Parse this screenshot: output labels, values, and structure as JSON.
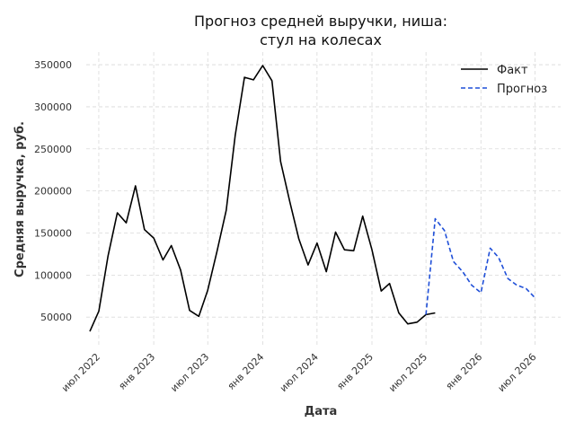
{
  "chart_data": {
    "type": "line",
    "title_lines": [
      "Прогноз средней выручки, ниша:",
      "стул на колесах"
    ],
    "xlabel": "Дата",
    "ylabel": "Средняя выручка, руб.",
    "ylim": [
      15000,
      365000
    ],
    "xlim": [
      "2022-05-20",
      "2026-09-25"
    ],
    "y_ticks": [
      50000,
      100000,
      150000,
      200000,
      250000,
      300000,
      350000
    ],
    "x_ticks": [
      {
        "date": "2022-07-01",
        "label": "июл 2022"
      },
      {
        "date": "2023-01-01",
        "label": "янв 2023"
      },
      {
        "date": "2023-07-01",
        "label": "июл 2023"
      },
      {
        "date": "2024-01-01",
        "label": "янв 2024"
      },
      {
        "date": "2024-07-01",
        "label": "июл 2024"
      },
      {
        "date": "2025-01-01",
        "label": "янв 2025"
      },
      {
        "date": "2025-07-01",
        "label": "июл 2025"
      },
      {
        "date": "2026-01-01",
        "label": "янв 2026"
      },
      {
        "date": "2026-07-01",
        "label": "июл 2026"
      }
    ],
    "grid": true,
    "legend_position": "top-right",
    "series": [
      {
        "name": "Факт",
        "style": "solid",
        "color": "#000000",
        "x": [
          "2022-06-01",
          "2022-07-01",
          "2022-08-01",
          "2022-09-01",
          "2022-10-01",
          "2022-11-01",
          "2022-12-01",
          "2023-01-01",
          "2023-02-01",
          "2023-03-01",
          "2023-04-01",
          "2023-05-01",
          "2023-06-01",
          "2023-07-01",
          "2023-08-01",
          "2023-09-01",
          "2023-10-01",
          "2023-11-01",
          "2023-12-01",
          "2024-01-01",
          "2024-02-01",
          "2024-03-01",
          "2024-04-01",
          "2024-05-01",
          "2024-06-01",
          "2024-07-01",
          "2024-08-01",
          "2024-09-01",
          "2024-10-01",
          "2024-11-01",
          "2024-12-01",
          "2025-01-01",
          "2025-02-01",
          "2025-03-01",
          "2025-04-01",
          "2025-05-01",
          "2025-06-01",
          "2025-07-01",
          "2025-08-01"
        ],
        "values": [
          33000,
          57000,
          123000,
          174000,
          162000,
          206000,
          154000,
          144000,
          118000,
          135000,
          106000,
          58000,
          51000,
          82000,
          128000,
          177000,
          266000,
          335000,
          332000,
          349000,
          331000,
          235000,
          187000,
          143000,
          112000,
          138000,
          104000,
          151000,
          130000,
          129000,
          170000,
          130000,
          81000,
          90000,
          55000,
          42000,
          44000,
          53000,
          55000
        ]
      },
      {
        "name": "Прогноз",
        "style": "dashed",
        "color": "#1f4fd8",
        "x": [
          "2025-07-01",
          "2025-08-01",
          "2025-09-01",
          "2025-10-01",
          "2025-11-01",
          "2025-12-01",
          "2026-01-01",
          "2026-02-01",
          "2026-03-01",
          "2026-04-01",
          "2026-05-01",
          "2026-06-01",
          "2026-07-01"
        ],
        "values": [
          53000,
          167000,
          153000,
          116000,
          104000,
          88000,
          79000,
          132000,
          121000,
          96000,
          88000,
          84000,
          73000
        ]
      }
    ]
  }
}
